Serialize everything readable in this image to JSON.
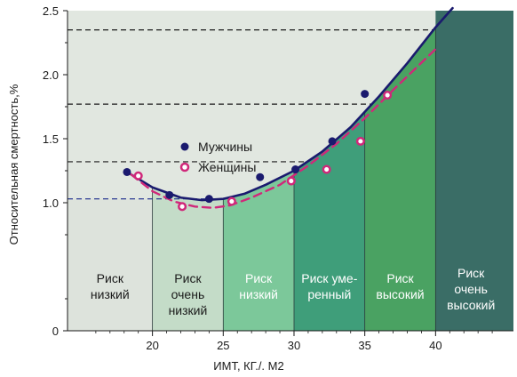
{
  "chart_data": {
    "type": "scatter",
    "xlabel": "ИМТ, КГ./. М2",
    "ylabel": "Относительная смертность,%",
    "xlim": [
      14,
      45.5
    ],
    "ylim": [
      0,
      2.5
    ],
    "x_ticks": [
      "20",
      "25",
      "30",
      "35",
      "40"
    ],
    "y_ticks": [
      "0",
      "1.0",
      "1.5",
      "2.0",
      "2.5"
    ],
    "grid": false,
    "legend_position": "center-left",
    "series": [
      {
        "name": "Мужчины",
        "marker": "filled-circle",
        "color": "#1a1a6e",
        "x": [
          18.2,
          21.2,
          24.0,
          27.6,
          30.1,
          32.7,
          35.0
        ],
        "y": [
          1.24,
          1.06,
          1.03,
          1.2,
          1.26,
          1.48,
          1.85
        ]
      },
      {
        "name": "Женщины",
        "marker": "open-circle",
        "color": "#d0287a",
        "x": [
          19.0,
          22.1,
          25.6,
          29.8,
          32.3,
          34.7,
          36.6
        ],
        "y": [
          1.21,
          0.97,
          1.01,
          1.17,
          1.26,
          1.48,
          1.84
        ]
      }
    ],
    "fit_curves": [
      {
        "series": "Мужчины",
        "style": "solid",
        "color": "#1a1a6e",
        "x": [
          18.2,
          20,
          22,
          23.5,
          25,
          26.5,
          28,
          30,
          32,
          34,
          36,
          38,
          40,
          41.2
        ],
        "y": [
          1.24,
          1.12,
          1.04,
          1.02,
          1.03,
          1.07,
          1.14,
          1.25,
          1.4,
          1.59,
          1.83,
          2.09,
          2.37,
          2.52
        ]
      },
      {
        "series": "Женщины",
        "style": "dashed",
        "color": "#d0287a",
        "x": [
          18.5,
          20,
          21.5,
          23,
          24.3,
          25.5,
          27,
          29,
          31,
          33,
          35,
          37,
          38.5,
          40
        ],
        "y": [
          1.22,
          1.09,
          1.01,
          0.97,
          0.96,
          0.98,
          1.04,
          1.14,
          1.29,
          1.46,
          1.66,
          1.88,
          2.04,
          2.2
        ]
      }
    ],
    "reference_lines": [
      1.03,
      1.32,
      1.77,
      2.35
    ],
    "zones": [
      {
        "label_lines": [
          "Риск",
          "низкий"
        ],
        "x_from": 14,
        "x_to": 20,
        "fill": "#dde3dc",
        "text_color": "#1a1a1a"
      },
      {
        "label_lines": [
          "Риск",
          "очень",
          "низкий"
        ],
        "x_from": 20,
        "x_to": 25,
        "fill": "#c4dcc8",
        "text_color": "#1a1a1a"
      },
      {
        "label_lines": [
          "Риск",
          "низкий"
        ],
        "x_from": 25,
        "x_to": 30,
        "fill": "#7cc89a",
        "text_color": "#ffffff"
      },
      {
        "label_lines": [
          "Риск уме-",
          "ренный"
        ],
        "x_from": 30,
        "x_to": 35,
        "fill": "#3f9e7a",
        "text_color": "#ffffff"
      },
      {
        "label_lines": [
          "Риск",
          "высокий"
        ],
        "x_from": 35,
        "x_to": 40,
        "fill": "#4aa262",
        "text_color": "#ffffff"
      },
      {
        "label_lines": [
          "Риск",
          "очень",
          "высокий"
        ],
        "x_from": 40,
        "x_to": 45.5,
        "fill": "#3a6d66",
        "text_color": "#ffffff"
      }
    ]
  }
}
